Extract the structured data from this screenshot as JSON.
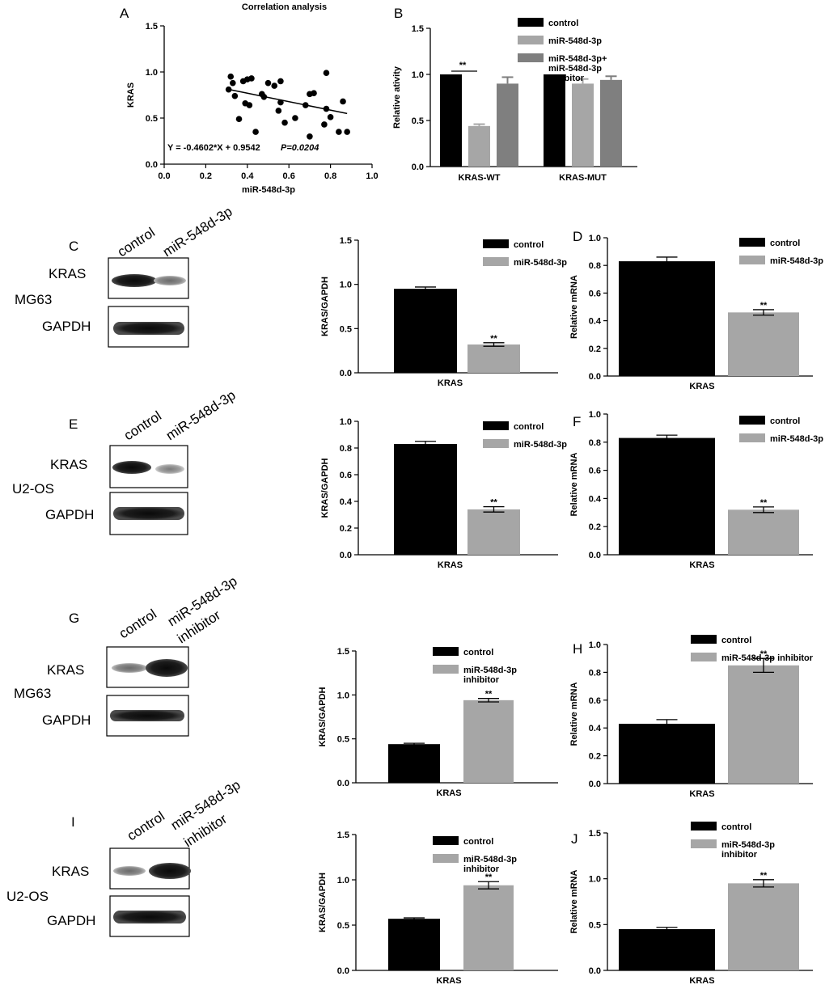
{
  "colors": {
    "black": "#000000",
    "grey": "#a6a6a6",
    "darkgrey": "#7f7f7f"
  },
  "charts": {
    "A": {
      "type": "scatter",
      "panel": "A",
      "title": "Correlation analysis",
      "xlabel": "miR-548d-3p",
      "ylabel": "KRAS",
      "xlim": [
        0.0,
        1.0
      ],
      "ylim": [
        0.0,
        1.5
      ],
      "xticks": [
        "0.0",
        "0.2",
        "0.4",
        "0.6",
        "0.8",
        "1.0"
      ],
      "yticks": [
        "0.0",
        "0.5",
        "1.0",
        "1.5"
      ],
      "points": [
        [
          0.31,
          0.81
        ],
        [
          0.32,
          0.95
        ],
        [
          0.33,
          0.88
        ],
        [
          0.34,
          0.74
        ],
        [
          0.36,
          0.49
        ],
        [
          0.38,
          0.9
        ],
        [
          0.39,
          0.66
        ],
        [
          0.4,
          0.92
        ],
        [
          0.41,
          0.64
        ],
        [
          0.42,
          0.93
        ],
        [
          0.44,
          0.35
        ],
        [
          0.47,
          0.76
        ],
        [
          0.48,
          0.73
        ],
        [
          0.5,
          0.88
        ],
        [
          0.53,
          0.85
        ],
        [
          0.55,
          0.58
        ],
        [
          0.56,
          0.9
        ],
        [
          0.56,
          0.67
        ],
        [
          0.58,
          0.45
        ],
        [
          0.63,
          0.5
        ],
        [
          0.68,
          0.64
        ],
        [
          0.7,
          0.76
        ],
        [
          0.7,
          0.3
        ],
        [
          0.72,
          0.77
        ],
        [
          0.77,
          0.43
        ],
        [
          0.78,
          0.6
        ],
        [
          0.78,
          0.99
        ],
        [
          0.8,
          0.51
        ],
        [
          0.84,
          0.35
        ],
        [
          0.86,
          0.68
        ],
        [
          0.88,
          0.35
        ]
      ],
      "regression": {
        "slope": -0.4602,
        "intercept": 0.9542,
        "x_from": 0.3,
        "x_to": 0.88
      },
      "annotation_eq": "Y = -0.4602*X + 0.9542",
      "annotation_p": "P=0.0204"
    },
    "B": {
      "type": "bar",
      "panel": "B",
      "ylabel": "Relative ativity",
      "ylim": [
        0,
        1.5
      ],
      "yticks": [
        "0.0",
        "0.5",
        "1.0",
        "1.5"
      ],
      "categories": [
        "KRAS-WT",
        "KRAS-MUT"
      ],
      "series": [
        {
          "name": "control",
          "color": "#000000",
          "values": [
            1.0,
            1.0
          ],
          "errors": [
            0,
            0
          ]
        },
        {
          "name": "miR-548d-3p",
          "color": "#a6a6a6",
          "values": [
            0.44,
            0.9
          ],
          "errors": [
            0.02,
            0.05
          ]
        },
        {
          "name": "miR-548d-3p+\nmiR-548d-3p\ninhibitor",
          "color": "#7f7f7f",
          "values": [
            0.9,
            0.94
          ],
          "errors": [
            0.07,
            0.04
          ]
        }
      ],
      "sig": "**"
    },
    "C": {
      "type": "bar",
      "ylabel": "KRAS/GAPDH",
      "xlabel": "KRAS",
      "ylim": [
        0,
        1.5
      ],
      "yticks": [
        "0.0",
        "0.5",
        "1.0",
        "1.5"
      ],
      "series": [
        {
          "name": "control",
          "color": "#000000",
          "value": 0.95,
          "error": 0.02
        },
        {
          "name": "miR-548d-3p",
          "color": "#a6a6a6",
          "value": 0.32,
          "error": 0.02
        }
      ],
      "sig": "**"
    },
    "D": {
      "type": "bar",
      "panel": "D",
      "ylabel": "Relative mRNA",
      "xlabel": "KRAS",
      "ylim": [
        0,
        1.0
      ],
      "yticks": [
        "0.0",
        "0.2",
        "0.4",
        "0.6",
        "0.8",
        "1.0"
      ],
      "series": [
        {
          "name": "control",
          "color": "#000000",
          "value": 0.83,
          "error": 0.03
        },
        {
          "name": "miR-548d-3p",
          "color": "#a6a6a6",
          "value": 0.46,
          "error": 0.02
        }
      ],
      "sig": "**"
    },
    "E": {
      "type": "bar",
      "ylabel": "KRAS/GAPDH",
      "xlabel": "KRAS",
      "ylim": [
        0,
        1.0
      ],
      "yticks": [
        "0.0",
        "0.2",
        "0.4",
        "0.6",
        "0.8",
        "1.0"
      ],
      "series": [
        {
          "name": "control",
          "color": "#000000",
          "value": 0.83,
          "error": 0.02
        },
        {
          "name": "miR-548d-3p",
          "color": "#a6a6a6",
          "value": 0.34,
          "error": 0.02
        }
      ],
      "sig": "**"
    },
    "F": {
      "type": "bar",
      "panel": "F",
      "ylabel": "Relative mRNA",
      "xlabel": "KRAS",
      "ylim": [
        0,
        1.0
      ],
      "yticks": [
        "0.0",
        "0.2",
        "0.4",
        "0.6",
        "0.8",
        "1.0"
      ],
      "series": [
        {
          "name": "control",
          "color": "#000000",
          "value": 0.83,
          "error": 0.02
        },
        {
          "name": "miR-548d-3p",
          "color": "#a6a6a6",
          "value": 0.32,
          "error": 0.02
        }
      ],
      "sig": "**"
    },
    "G": {
      "type": "bar",
      "ylabel": "KRAS/GAPDH",
      "xlabel": "KRAS",
      "ylim": [
        0,
        1.5
      ],
      "yticks": [
        "0.0",
        "0.5",
        "1.0",
        "1.5"
      ],
      "series": [
        {
          "name": "control",
          "color": "#000000",
          "value": 0.44,
          "error": 0.01
        },
        {
          "name": "miR-548d-3p\ninhibitor",
          "color": "#a6a6a6",
          "value": 0.94,
          "error": 0.02
        }
      ],
      "sig": "**"
    },
    "H": {
      "type": "bar",
      "panel": "H",
      "ylabel": "Relative mRNA",
      "xlabel": "KRAS",
      "ylim": [
        0,
        1.0
      ],
      "yticks": [
        "0.0",
        "0.2",
        "0.4",
        "0.6",
        "0.8",
        "1.0"
      ],
      "series": [
        {
          "name": "control",
          "color": "#000000",
          "value": 0.43,
          "error": 0.03
        },
        {
          "name": "miR-548d-3p inhibitor",
          "color": "#a6a6a6",
          "value": 0.85,
          "error": 0.05
        }
      ],
      "sig": "**"
    },
    "I": {
      "type": "bar",
      "ylabel": "KRAS/GAPDH",
      "xlabel": "KRAS",
      "ylim": [
        0,
        1.5
      ],
      "yticks": [
        "0.0",
        "0.5",
        "1.0",
        "1.5"
      ],
      "series": [
        {
          "name": "control",
          "color": "#000000",
          "value": 0.57,
          "error": 0.01
        },
        {
          "name": "miR-548d-3p\ninhibitor",
          "color": "#a6a6a6",
          "value": 0.94,
          "error": 0.04
        }
      ],
      "sig": "**"
    },
    "J": {
      "type": "bar",
      "panel": "J",
      "ylabel": "Relative mRNA",
      "xlabel": "KRAS",
      "ylim": [
        0,
        1.5
      ],
      "yticks": [
        "0.0",
        "0.5",
        "1.0",
        "1.5"
      ],
      "series": [
        {
          "name": "control",
          "color": "#000000",
          "value": 0.45,
          "error": 0.02
        },
        {
          "name": "miR-548d-3p\ninhibitor",
          "color": "#a6a6a6",
          "value": 0.95,
          "error": 0.04
        }
      ],
      "sig": "**"
    }
  },
  "blots": {
    "C": {
      "panel": "C",
      "cell": "MG63",
      "lanes": [
        "control",
        "miR-548d-3p"
      ],
      "rows": [
        "KRAS",
        "GAPDH"
      ]
    },
    "E": {
      "panel": "E",
      "cell": "U2-OS",
      "lanes": [
        "control",
        "miR-548d-3p"
      ],
      "rows": [
        "KRAS",
        "GAPDH"
      ]
    },
    "G": {
      "panel": "G",
      "cell": "MG63",
      "lanes": [
        "control",
        "miR-548d-3p",
        "inhibitor"
      ],
      "rows": [
        "KRAS",
        "GAPDH"
      ]
    },
    "I": {
      "panel": "I",
      "cell": "U2-OS",
      "lanes": [
        "control",
        "miR-548d-3p",
        "inhibitor"
      ],
      "rows": [
        "KRAS",
        "GAPDH"
      ]
    }
  }
}
